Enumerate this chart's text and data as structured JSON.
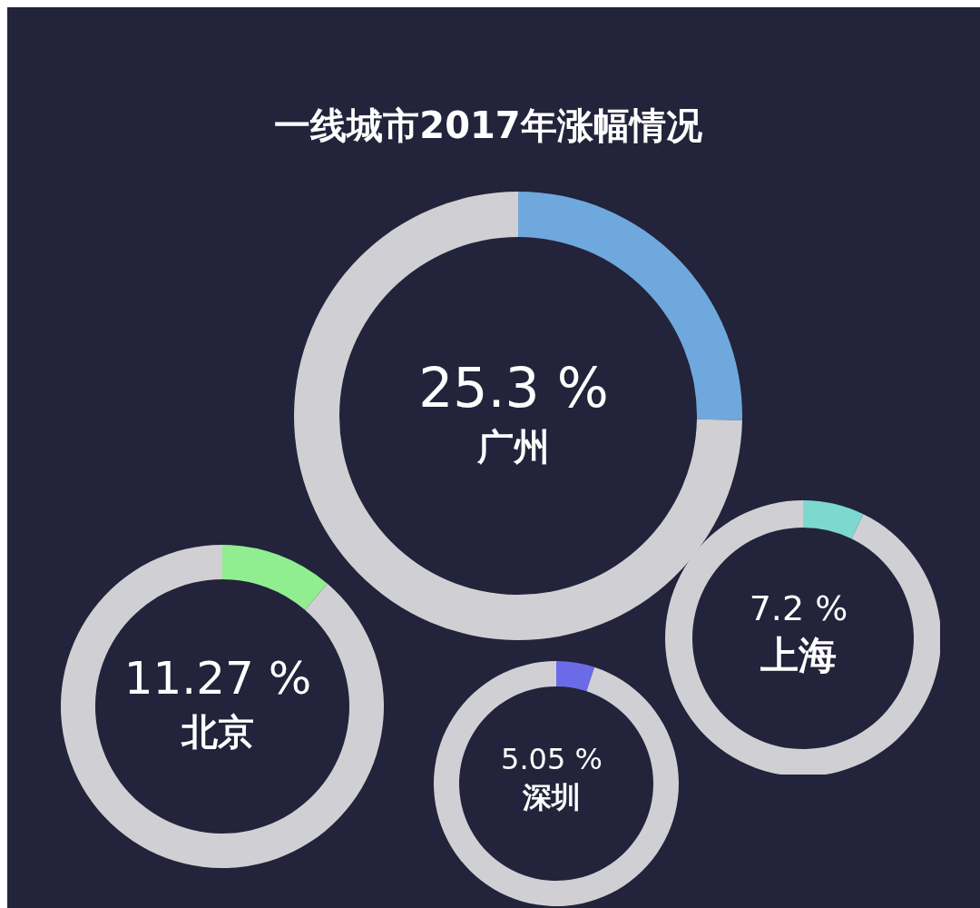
{
  "chart_data": [
    {
      "type": "donut",
      "title": "一线城市2017年涨幅情况",
      "categories": [
        null,
        null
      ],
      "values": [
        25.3,
        74.7
      ],
      "colors": [
        "#6fa8dc",
        "#d0d0d4"
      ],
      "annotations": [
        "25.3 %",
        "广州"
      ]
    },
    {
      "type": "donut",
      "categories": [
        null,
        null
      ],
      "values": [
        11.27,
        88.73
      ],
      "colors": [
        "#90ee90",
        "#d0d0d4"
      ],
      "annotations": [
        "11.27 %",
        "北京"
      ]
    },
    {
      "type": "donut",
      "categories": [
        null,
        null
      ],
      "values": [
        5.05,
        94.95
      ],
      "colors": [
        "#6b6be8",
        "#d0d0d4"
      ],
      "annotations": [
        "5.05 %",
        "深圳"
      ]
    },
    {
      "type": "donut",
      "categories": [
        null,
        null
      ],
      "values": [
        7.2,
        92.8
      ],
      "colors": [
        "#7dd8d0",
        "#d0d0d4"
      ],
      "annotations": [
        "7.2 %",
        "上海"
      ]
    }
  ]
}
